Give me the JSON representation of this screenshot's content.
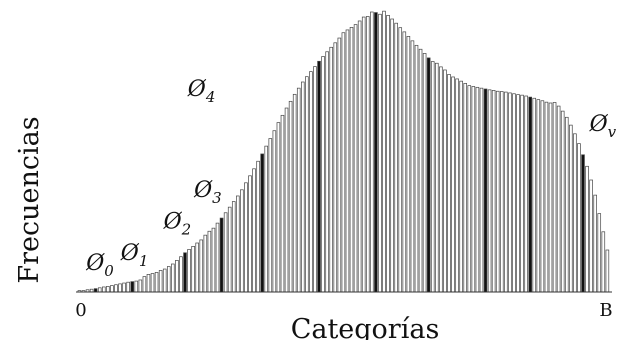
{
  "chart_data": {
    "type": "bar",
    "xlabel": "Categorías",
    "ylabel": "Frecuencias",
    "x_tick_start": "0",
    "x_tick_end": "B",
    "grid": false,
    "legend": "none",
    "ylim": [
      0,
      100
    ],
    "values": [
      0.5,
      0.5,
      0.8,
      1.0,
      1.2,
      1.5,
      1.8,
      2.0,
      2.3,
      2.6,
      2.9,
      3.2,
      3.5,
      3.7,
      3.9,
      4.3,
      5.5,
      6.3,
      6.6,
      7.0,
      7.7,
      8.2,
      9.1,
      10,
      11.3,
      12.6,
      14,
      15.2,
      16.3,
      17.5,
      18.6,
      20.3,
      21.7,
      22.8,
      24.6,
      26.4,
      28.3,
      30.3,
      32.3,
      34.3,
      36.5,
      39,
      41.5,
      44,
      46.7,
      49.3,
      52.1,
      54.8,
      57.6,
      60.5,
      63.1,
      65.7,
      68.1,
      70.6,
      72.8,
      75,
      76.9,
      78.7,
      80.5,
      82.4,
      84.1,
      85.8,
      87.4,
      89,
      90.7,
      92.6,
      93.6,
      94.5,
      95.5,
      96.8,
      98.2,
      98.4,
      100,
      99.8,
      99.2,
      100.3,
      98.8,
      97.5,
      96,
      94.4,
      92.9,
      91.3,
      89.7,
      88.1,
      86.7,
      85.2,
      83.6,
      82.3,
      81.7,
      80.4,
      79.3,
      77.7,
      76.8,
      76.1,
      75.3,
      74.5,
      73.7,
      73.4,
      73.1,
      72.8,
      72.5,
      72.2,
      72.0,
      71.7,
      71.6,
      71.4,
      71.1,
      70.8,
      70.5,
      70.3,
      70.0,
      69.6,
      69.2,
      68.7,
      68.3,
      67.8,
      67.5,
      67.7,
      66.4,
      64.6,
      62.4,
      59.6,
      56.5,
      53.0,
      49.0,
      44.9,
      40.0,
      34.6,
      28.0,
      21.5,
      15.0
    ],
    "highlighted_indices": [
      4,
      13,
      26,
      35,
      45,
      59,
      73,
      86,
      100,
      111,
      124
    ],
    "annotations": [
      {
        "label": "Ø",
        "sub": "0",
        "near_index": 2
      },
      {
        "label": "Ø",
        "sub": "1",
        "near_index": 12
      },
      {
        "label": "Ø",
        "sub": "2",
        "near_index": 25
      },
      {
        "label": "Ø",
        "sub": "3",
        "near_index": 34
      },
      {
        "label": "Ø",
        "sub": "4",
        "near_index": 45
      },
      {
        "label": "Ø",
        "sub": "v",
        "near_index": 124
      }
    ],
    "colors": {
      "bar_fill": "#ffffff",
      "bar_stroke": "#444444",
      "highlight_fill": "#111111"
    }
  }
}
